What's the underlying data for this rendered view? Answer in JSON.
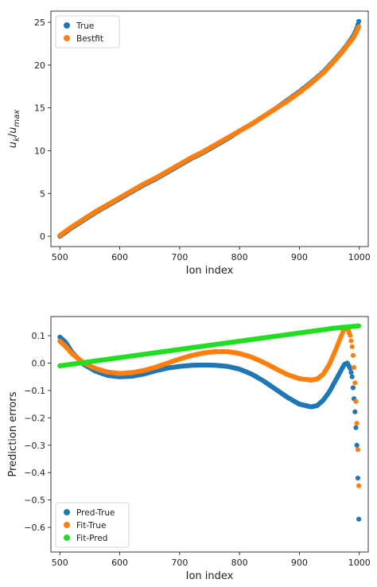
{
  "chart_data": [
    {
      "type": "scatter",
      "title": "",
      "xlabel": "Ion index",
      "ylabel": "u_k/u_max",
      "xlim": [
        485,
        1015
      ],
      "ylim": [
        -1.2,
        26.3
      ],
      "xticks": [
        500,
        600,
        700,
        800,
        900,
        1000
      ],
      "yticks": [
        0,
        5,
        10,
        15,
        20,
        25
      ],
      "legend_position": "top-left",
      "grid": false,
      "series": [
        {
          "name": "True",
          "color": "#1f77b4",
          "x": [
            500,
            520,
            540,
            560,
            580,
            600,
            620,
            640,
            660,
            680,
            700,
            720,
            740,
            760,
            780,
            800,
            820,
            840,
            860,
            880,
            900,
            920,
            940,
            960,
            970,
            980,
            990,
            995,
            1000
          ],
          "y": [
            0.0,
            1.0,
            1.9,
            2.8,
            3.6,
            4.4,
            5.2,
            6.0,
            6.7,
            7.5,
            8.3,
            9.1,
            9.8,
            10.6,
            11.4,
            12.3,
            13.1,
            14.0,
            14.9,
            15.9,
            16.9,
            18.0,
            19.2,
            20.7,
            21.5,
            22.4,
            23.4,
            24.1,
            25.3
          ]
        },
        {
          "name": "Bestfit",
          "color": "#ff7f0e",
          "x": [
            500,
            520,
            540,
            560,
            580,
            600,
            620,
            640,
            660,
            680,
            700,
            720,
            740,
            760,
            780,
            800,
            820,
            840,
            860,
            880,
            900,
            920,
            940,
            960,
            970,
            980,
            990,
            995,
            1000
          ],
          "y": [
            0.1,
            1.1,
            2.0,
            2.9,
            3.7,
            4.5,
            5.3,
            6.1,
            6.8,
            7.6,
            8.4,
            9.2,
            9.9,
            10.7,
            11.5,
            12.3,
            13.1,
            14.0,
            14.9,
            15.8,
            16.8,
            17.9,
            19.1,
            20.6,
            21.4,
            22.3,
            23.2,
            23.8,
            24.6
          ]
        }
      ]
    },
    {
      "type": "scatter",
      "title": "",
      "xlabel": "Ion index",
      "ylabel": "Prediction errors",
      "xlim": [
        485,
        1015
      ],
      "ylim": [
        -0.69,
        0.17
      ],
      "xticks": [
        500,
        600,
        700,
        800,
        900,
        1000
      ],
      "yticks": [
        0.1,
        0.0,
        -0.1,
        -0.2,
        -0.3,
        -0.4,
        -0.5,
        -0.6
      ],
      "legend_position": "bottom-left",
      "grid": false,
      "series": [
        {
          "name": "Pred-True",
          "color": "#1f77b4",
          "x": [
            500,
            510,
            520,
            540,
            560,
            580,
            600,
            620,
            640,
            660,
            680,
            700,
            720,
            740,
            760,
            780,
            800,
            820,
            840,
            860,
            880,
            900,
            920,
            930,
            940,
            950,
            960,
            970,
            975,
            980,
            985,
            988,
            990,
            992,
            994,
            996,
            998,
            1000
          ],
          "y": [
            0.095,
            0.075,
            0.04,
            -0.005,
            -0.03,
            -0.045,
            -0.05,
            -0.048,
            -0.04,
            -0.028,
            -0.018,
            -0.012,
            -0.008,
            -0.007,
            -0.008,
            -0.012,
            -0.022,
            -0.04,
            -0.065,
            -0.095,
            -0.125,
            -0.15,
            -0.16,
            -0.155,
            -0.135,
            -0.105,
            -0.065,
            -0.025,
            -0.005,
            0.0,
            -0.02,
            -0.05,
            -0.1,
            -0.15,
            -0.22,
            -0.3,
            -0.45,
            -0.65
          ]
        },
        {
          "name": "Fit-True",
          "color": "#ff7f0e",
          "x": [
            500,
            510,
            520,
            540,
            560,
            580,
            600,
            620,
            640,
            660,
            680,
            700,
            720,
            740,
            760,
            780,
            800,
            820,
            840,
            860,
            880,
            900,
            920,
            930,
            940,
            950,
            960,
            970,
            975,
            980,
            985,
            988,
            990,
            992,
            994,
            996,
            998,
            1000
          ],
          "y": [
            0.08,
            0.06,
            0.035,
            0.0,
            -0.02,
            -0.033,
            -0.038,
            -0.035,
            -0.027,
            -0.015,
            0.0,
            0.015,
            0.028,
            0.037,
            0.042,
            0.042,
            0.035,
            0.022,
            0.003,
            -0.02,
            -0.042,
            -0.057,
            -0.062,
            -0.058,
            -0.04,
            -0.005,
            0.045,
            0.1,
            0.125,
            0.13,
            0.1,
            0.06,
            0.02,
            -0.04,
            -0.12,
            -0.22,
            -0.34,
            -0.52
          ]
        },
        {
          "name": "Fit-Pred",
          "color": "#22dd22",
          "x": [
            500,
            520,
            540,
            560,
            580,
            600,
            620,
            640,
            660,
            680,
            700,
            720,
            740,
            760,
            780,
            800,
            820,
            840,
            860,
            880,
            900,
            920,
            940,
            960,
            980,
            1000
          ],
          "y": [
            -0.01,
            -0.004,
            0.002,
            0.008,
            0.014,
            0.02,
            0.026,
            0.032,
            0.038,
            0.044,
            0.05,
            0.056,
            0.062,
            0.068,
            0.074,
            0.08,
            0.086,
            0.092,
            0.098,
            0.104,
            0.11,
            0.116,
            0.122,
            0.128,
            0.132,
            0.136
          ]
        }
      ]
    }
  ]
}
